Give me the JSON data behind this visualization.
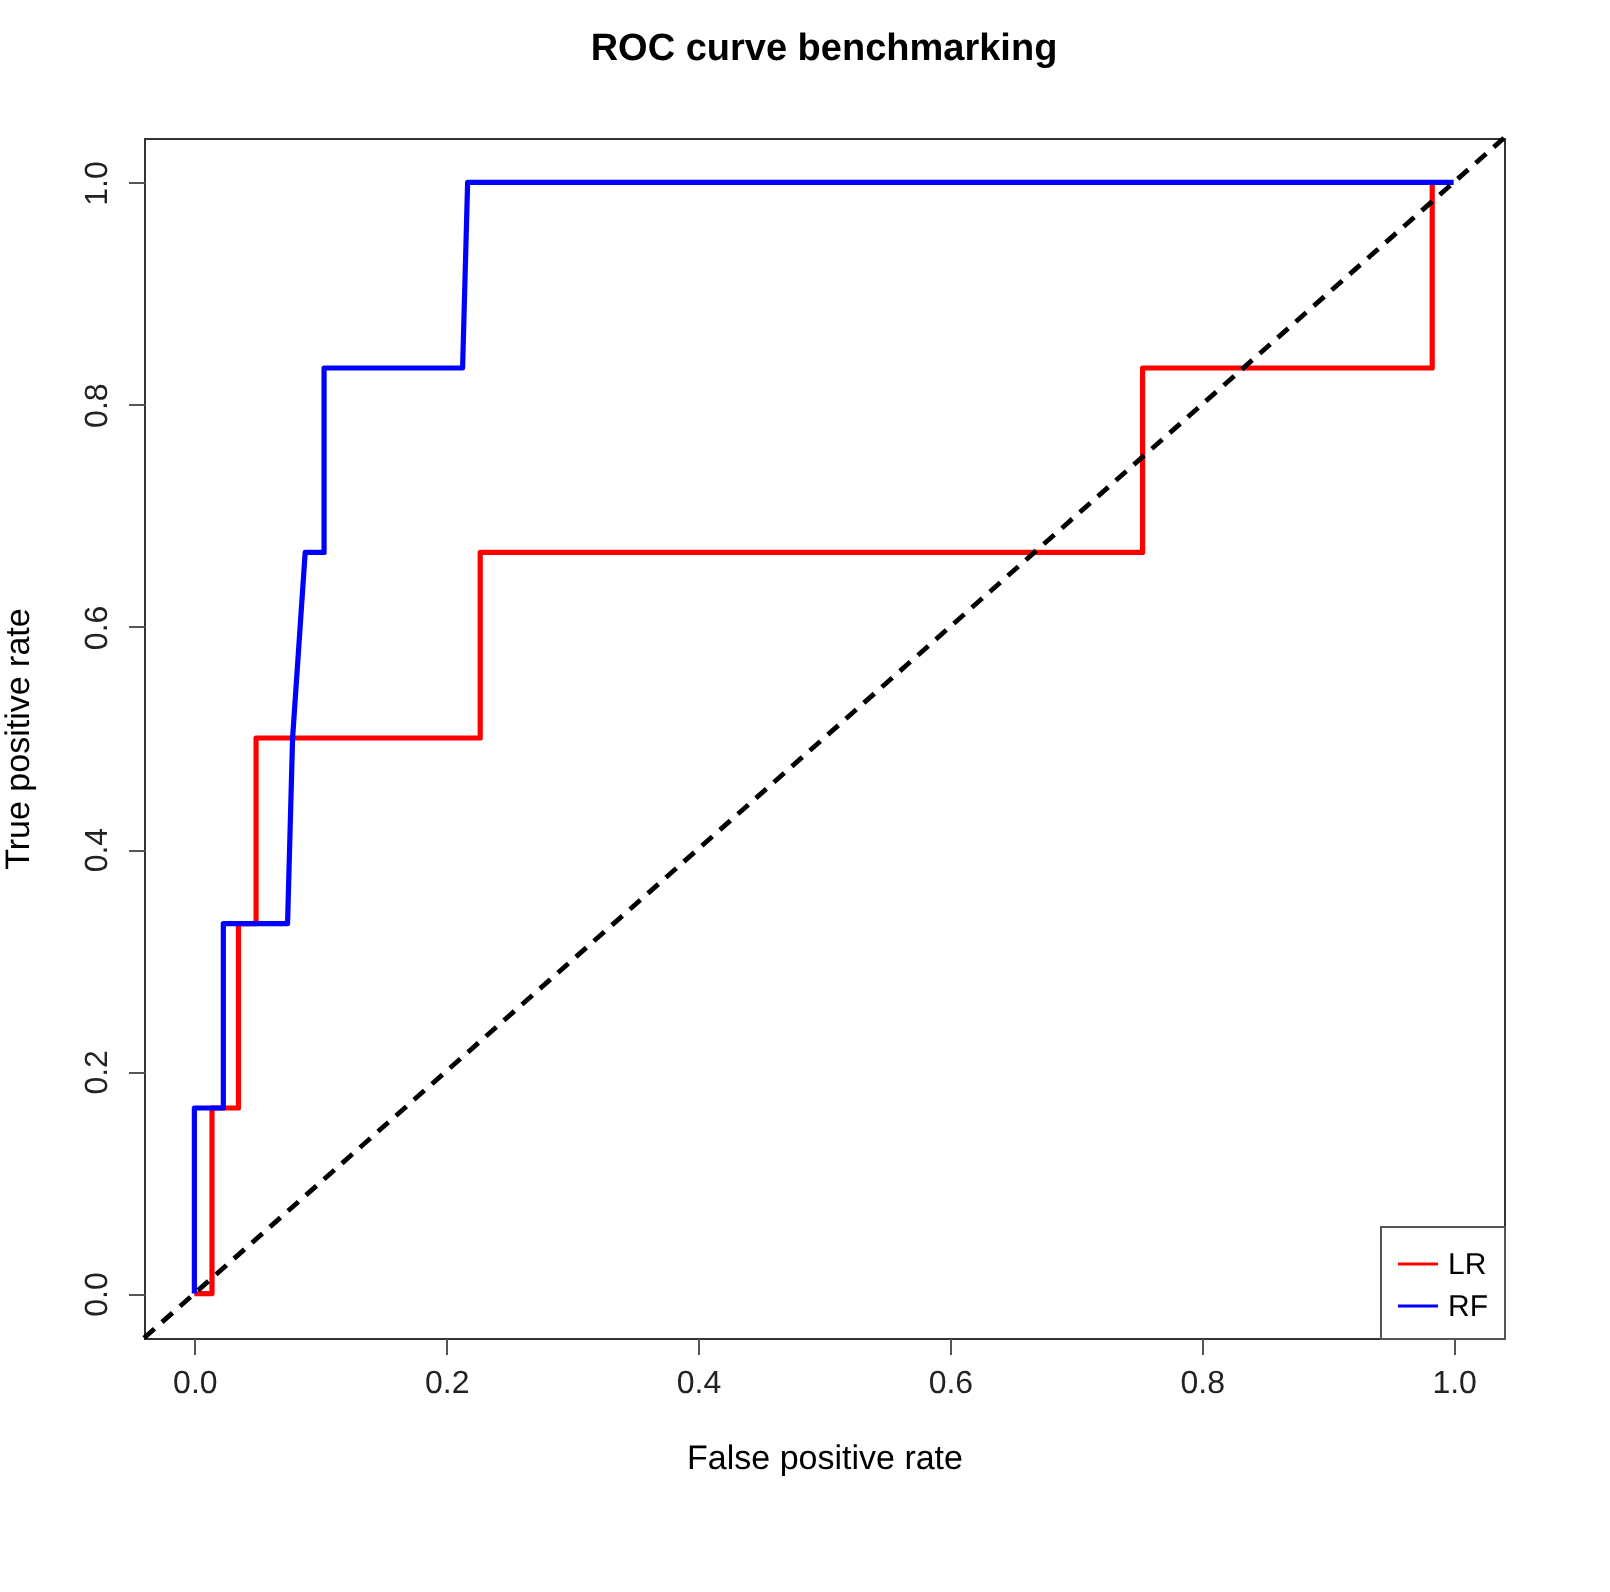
{
  "chart_data": {
    "type": "line",
    "title": "ROC curve benchmarking",
    "xlabel": "False positive rate",
    "ylabel": "True positive rate",
    "xlim": [
      -0.04,
      1.04
    ],
    "ylim": [
      -0.04,
      1.04
    ],
    "xticks": [
      {
        "value": 0,
        "label": "0.0"
      },
      {
        "value": 0.2,
        "label": "0.2"
      },
      {
        "value": 0.4,
        "label": "0.4"
      },
      {
        "value": 0.6,
        "label": "0.6"
      },
      {
        "value": 0.8,
        "label": "0.8"
      },
      {
        "value": 1,
        "label": "1.0"
      }
    ],
    "yticks": [
      {
        "value": 0,
        "label": "0.0"
      },
      {
        "value": 0.2,
        "label": "0.2"
      },
      {
        "value": 0.4,
        "label": "0.4"
      },
      {
        "value": 0.6,
        "label": "0.6"
      },
      {
        "value": 0.8,
        "label": "0.8"
      },
      {
        "value": 1,
        "label": "1.0"
      }
    ],
    "grid": false,
    "legend": "bottom right",
    "marker": "none",
    "series": [
      {
        "name": "LR",
        "color": "#ff0000",
        "line_style": "solid",
        "x": [
          0,
          0.014,
          0.014,
          0.035,
          0.035,
          0.049,
          0.049,
          0.227,
          0.227,
          0.753,
          0.753,
          0.983,
          0.983
        ],
        "values": [
          0,
          0,
          0.167,
          0.167,
          0.333,
          0.333,
          0.5,
          0.5,
          0.667,
          0.667,
          0.833,
          0.833,
          1
        ]
      },
      {
        "name": "RF",
        "color": "#0000ff",
        "line_style": "solid",
        "x": [
          0,
          0,
          0.023,
          0.023,
          0.074,
          0.078,
          0.088,
          0.103,
          0.103,
          0.213,
          0.217,
          1
        ],
        "values": [
          0,
          0.167,
          0.167,
          0.333,
          0.333,
          0.5,
          0.667,
          0.667,
          0.833,
          0.833,
          1,
          1
        ]
      },
      {
        "color": "#000000",
        "line_style": "dashed",
        "x": [
          -0.04,
          1.04
        ],
        "values": [
          -0.04,
          1.04
        ]
      }
    ]
  }
}
